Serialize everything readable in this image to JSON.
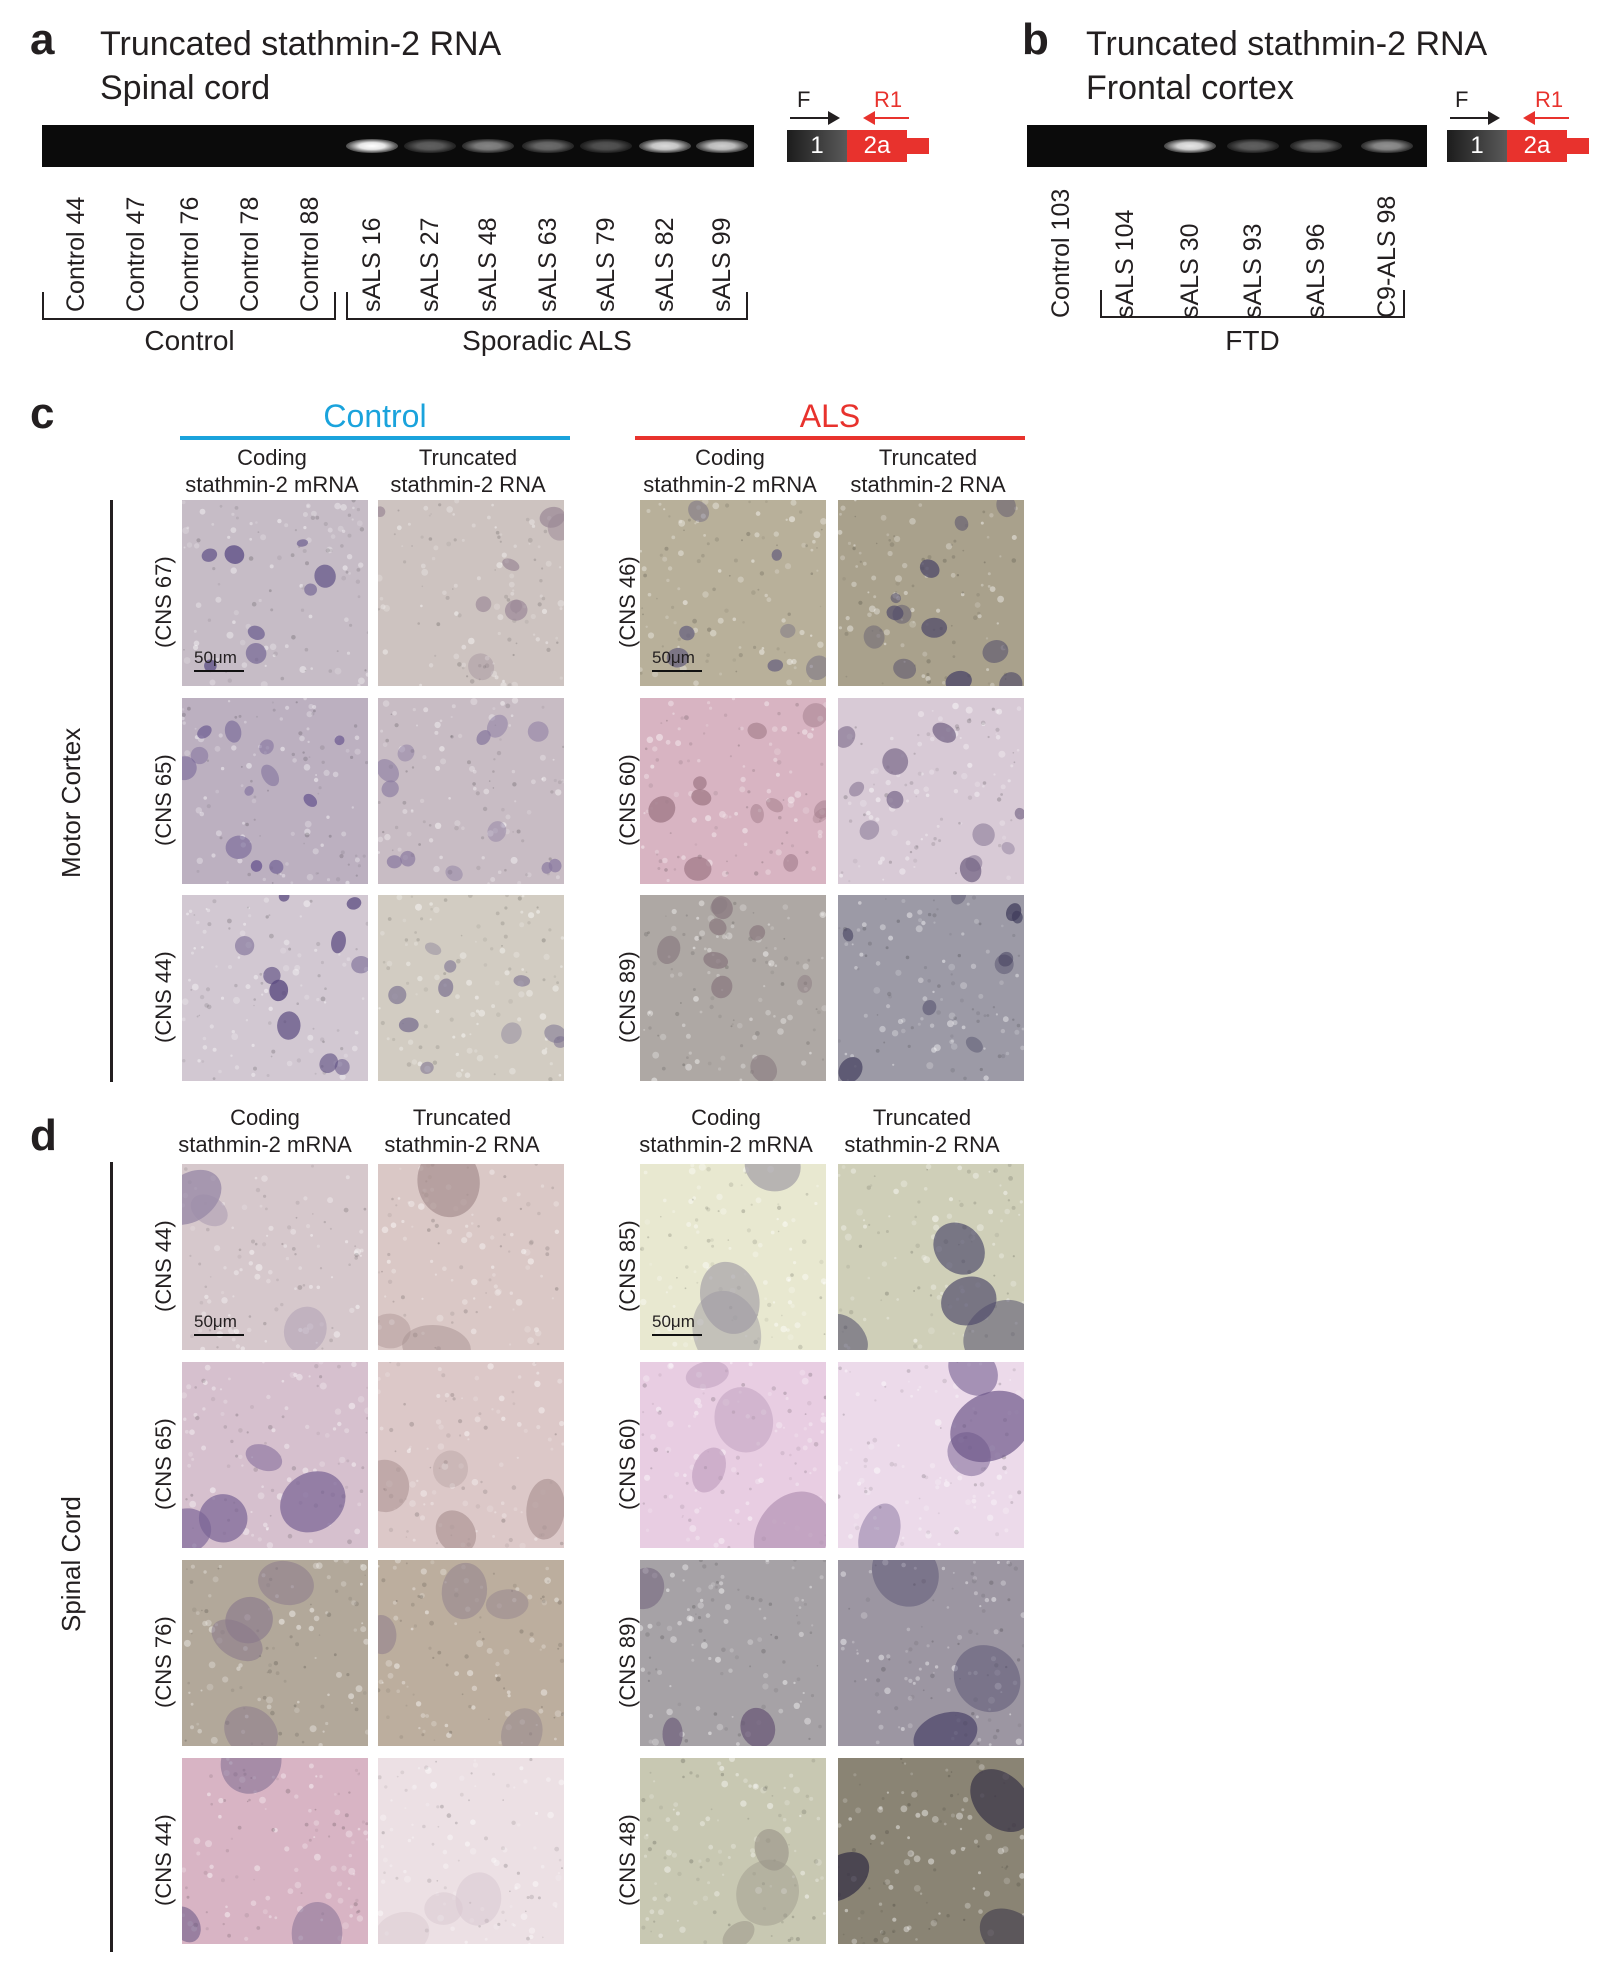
{
  "panel_a": {
    "letter": "a",
    "title_line1": "Truncated stathmin-2 RNA",
    "title_line2": "Spinal cord",
    "lanes": [
      "Control 44",
      "Control 47",
      "Control 76",
      "Control 78",
      "Control 88",
      "sALS 16",
      "sALS 27",
      "sALS 48",
      "sALS 63",
      "sALS 79",
      "sALS 82",
      "sALS 99"
    ],
    "band_intensity": [
      0,
      0,
      0,
      0,
      0,
      1.0,
      0.35,
      0.5,
      0.4,
      0.3,
      0.85,
      0.8
    ],
    "group_control": "Control",
    "group_als": "Sporadic ALS"
  },
  "panel_b": {
    "letter": "b",
    "title_line1": "Truncated stathmin-2 RNA",
    "title_line2": "Frontal cortex",
    "lanes": [
      "Control 103",
      "sALS 104",
      "sALS 30",
      "sALS 93",
      "sALS 96",
      "C9-ALS 98"
    ],
    "band_intensity": [
      0,
      0,
      0.9,
      0.35,
      0.4,
      0.55
    ],
    "group_ftd": "FTD"
  },
  "gene_diagram": {
    "exon1": "1",
    "exon2": "2a",
    "forward_primer": "F",
    "reverse_primer": "R1"
  },
  "panel_c": {
    "letter": "c",
    "group_control": "Control",
    "group_als": "ALS",
    "col_coding_line1": "Coding",
    "col_coding_line2": "stathmin-2 mRNA",
    "col_trunc_line1": "Truncated",
    "col_trunc_line2": "stathmin-2 RNA",
    "region": "Motor Cortex",
    "control_cases": [
      "(CNS 67)",
      "(CNS 65)",
      "(CNS 44)"
    ],
    "als_cases": [
      "(CNS 46)",
      "(CNS 60)",
      "(CNS 89)"
    ],
    "scale": "50μm"
  },
  "panel_d": {
    "letter": "d",
    "col_coding_line1": "Coding",
    "col_coding_line2": "stathmin-2 mRNA",
    "col_trunc_line1": "Truncated",
    "col_trunc_line2": "stathmin-2 RNA",
    "region": "Spinal Cord",
    "control_cases": [
      "(CNS 44)",
      "(CNS 65)",
      "(CNS 76)",
      "(CNS 44)"
    ],
    "als_cases": [
      "(CNS 85)",
      "(CNS 60)",
      "(CNS 89)",
      "(CNS 48)"
    ],
    "scale": "50μm"
  },
  "colors": {
    "control_blue": "#1aa3dc",
    "als_red": "#e8322d",
    "text": "#231f20"
  }
}
